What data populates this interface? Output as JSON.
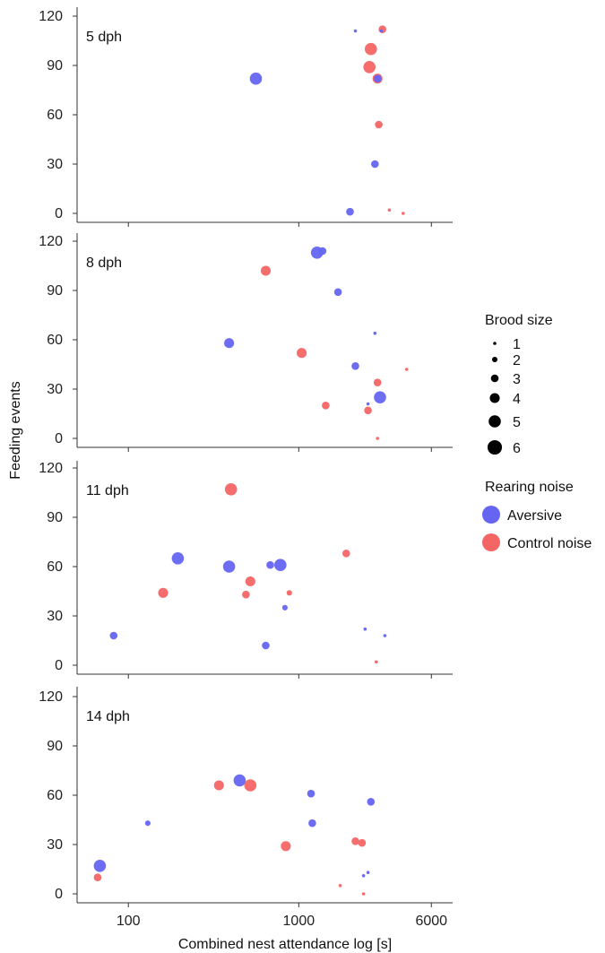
{
  "chart_data": {
    "type": "scatter",
    "xlabel": "Combined nest attendance  log [s]",
    "ylabel": "Feeding events",
    "x_scale": "log",
    "xlim": [
      50,
      8000
    ],
    "ylim": [
      -3,
      122
    ],
    "x_ticks": [
      {
        "value": 100,
        "label": "100"
      },
      {
        "value": 1000,
        "label": "1000"
      },
      {
        "value": 6000,
        "label": "6000"
      }
    ],
    "y_ticks": [
      {
        "value": 0,
        "label": "0"
      },
      {
        "value": 30,
        "label": "30"
      },
      {
        "value": 60,
        "label": "60"
      },
      {
        "value": 90,
        "label": "90"
      },
      {
        "value": 120,
        "label": "120"
      }
    ],
    "grid": false,
    "legend_placement": "right",
    "size_legend": {
      "title": "Brood size",
      "sizes": [
        1,
        2,
        3,
        4,
        5,
        6
      ],
      "labels": [
        "1",
        "2",
        "3",
        "4",
        "5",
        "6"
      ]
    },
    "color_legend": {
      "title": "Rearing noise",
      "entries": [
        {
          "label": "Aversive",
          "color": "#6565f2"
        },
        {
          "label": "Control noise",
          "color": "#f46565"
        }
      ]
    },
    "panels": [
      {
        "label": "5 dph",
        "points": [
          {
            "group": "Aversive",
            "x": 2150,
            "y": 111,
            "size": 1
          },
          {
            "group": "Control noise",
            "x": 3100,
            "y": 112,
            "size": 3
          },
          {
            "group": "Aversive",
            "x": 3050,
            "y": 111,
            "size": 1
          },
          {
            "group": "Control noise",
            "x": 2650,
            "y": 100,
            "size": 5
          },
          {
            "group": "Control noise",
            "x": 2600,
            "y": 89,
            "size": 5
          },
          {
            "group": "Control noise",
            "x": 2900,
            "y": 82,
            "size": 4
          },
          {
            "group": "Aversive",
            "x": 2900,
            "y": 82,
            "size": 3
          },
          {
            "group": "Aversive",
            "x": 560,
            "y": 82,
            "size": 5
          },
          {
            "group": "Control noise",
            "x": 2950,
            "y": 54,
            "size": 3
          },
          {
            "group": "Aversive",
            "x": 2800,
            "y": 30,
            "size": 3
          },
          {
            "group": "Aversive",
            "x": 2000,
            "y": 1,
            "size": 3
          },
          {
            "group": "Control noise",
            "x": 3400,
            "y": 2,
            "size": 1
          },
          {
            "group": "Control noise",
            "x": 4100,
            "y": 0,
            "size": 1
          }
        ]
      },
      {
        "label": "8 dph",
        "points": [
          {
            "group": "Aversive",
            "x": 1280,
            "y": 113,
            "size": 5
          },
          {
            "group": "Aversive",
            "x": 1380,
            "y": 114,
            "size": 3
          },
          {
            "group": "Control noise",
            "x": 640,
            "y": 102,
            "size": 4
          },
          {
            "group": "Aversive",
            "x": 1700,
            "y": 89,
            "size": 3
          },
          {
            "group": "Aversive",
            "x": 2800,
            "y": 64,
            "size": 1
          },
          {
            "group": "Aversive",
            "x": 390,
            "y": 58,
            "size": 4
          },
          {
            "group": "Control noise",
            "x": 1040,
            "y": 52,
            "size": 4
          },
          {
            "group": "Aversive",
            "x": 2150,
            "y": 44,
            "size": 3
          },
          {
            "group": "Control noise",
            "x": 4300,
            "y": 42,
            "size": 1
          },
          {
            "group": "Control noise",
            "x": 2900,
            "y": 34,
            "size": 3
          },
          {
            "group": "Aversive",
            "x": 3000,
            "y": 25,
            "size": 5
          },
          {
            "group": "Aversive",
            "x": 2550,
            "y": 21,
            "size": 1
          },
          {
            "group": "Control noise",
            "x": 1440,
            "y": 20,
            "size": 3
          },
          {
            "group": "Control noise",
            "x": 2550,
            "y": 17,
            "size": 3
          },
          {
            "group": "Control noise",
            "x": 2900,
            "y": 0,
            "size": 1
          }
        ]
      },
      {
        "label": "11 dph",
        "points": [
          {
            "group": "Control noise",
            "x": 400,
            "y": 107,
            "size": 5
          },
          {
            "group": "Aversive",
            "x": 195,
            "y": 65,
            "size": 5
          },
          {
            "group": "Control noise",
            "x": 1900,
            "y": 68,
            "size": 3
          },
          {
            "group": "Aversive",
            "x": 390,
            "y": 60,
            "size": 5
          },
          {
            "group": "Aversive",
            "x": 680,
            "y": 61,
            "size": 3
          },
          {
            "group": "Aversive",
            "x": 780,
            "y": 61,
            "size": 5
          },
          {
            "group": "Control noise",
            "x": 520,
            "y": 51,
            "size": 4
          },
          {
            "group": "Control noise",
            "x": 160,
            "y": 44,
            "size": 4
          },
          {
            "group": "Control noise",
            "x": 490,
            "y": 43,
            "size": 3
          },
          {
            "group": "Control noise",
            "x": 880,
            "y": 44,
            "size": 2
          },
          {
            "group": "Aversive",
            "x": 830,
            "y": 35,
            "size": 2
          },
          {
            "group": "Aversive",
            "x": 2450,
            "y": 22,
            "size": 1
          },
          {
            "group": "Aversive",
            "x": 3200,
            "y": 18,
            "size": 1
          },
          {
            "group": "Aversive",
            "x": 82,
            "y": 18,
            "size": 3
          },
          {
            "group": "Aversive",
            "x": 640,
            "y": 12,
            "size": 3
          },
          {
            "group": "Control noise",
            "x": 2850,
            "y": 2,
            "size": 1
          }
        ]
      },
      {
        "label": "14 dph",
        "points": [
          {
            "group": "Aversive",
            "x": 450,
            "y": 69,
            "size": 5
          },
          {
            "group": "Control noise",
            "x": 340,
            "y": 66,
            "size": 4
          },
          {
            "group": "Control noise",
            "x": 520,
            "y": 66,
            "size": 5
          },
          {
            "group": "Aversive",
            "x": 1180,
            "y": 61,
            "size": 3
          },
          {
            "group": "Aversive",
            "x": 2650,
            "y": 56,
            "size": 3
          },
          {
            "group": "Aversive",
            "x": 130,
            "y": 43,
            "size": 2
          },
          {
            "group": "Aversive",
            "x": 1200,
            "y": 43,
            "size": 3
          },
          {
            "group": "Control noise",
            "x": 2150,
            "y": 32,
            "size": 3
          },
          {
            "group": "Control noise",
            "x": 2350,
            "y": 31,
            "size": 3
          },
          {
            "group": "Control noise",
            "x": 840,
            "y": 29,
            "size": 4
          },
          {
            "group": "Aversive",
            "x": 68,
            "y": 17,
            "size": 5
          },
          {
            "group": "Aversive",
            "x": 2550,
            "y": 13,
            "size": 1
          },
          {
            "group": "Aversive",
            "x": 2400,
            "y": 11,
            "size": 1
          },
          {
            "group": "Control noise",
            "x": 66,
            "y": 10,
            "size": 3
          },
          {
            "group": "Control noise",
            "x": 1750,
            "y": 5,
            "size": 1
          },
          {
            "group": "Control noise",
            "x": 2400,
            "y": 0,
            "size": 1
          }
        ]
      }
    ]
  }
}
